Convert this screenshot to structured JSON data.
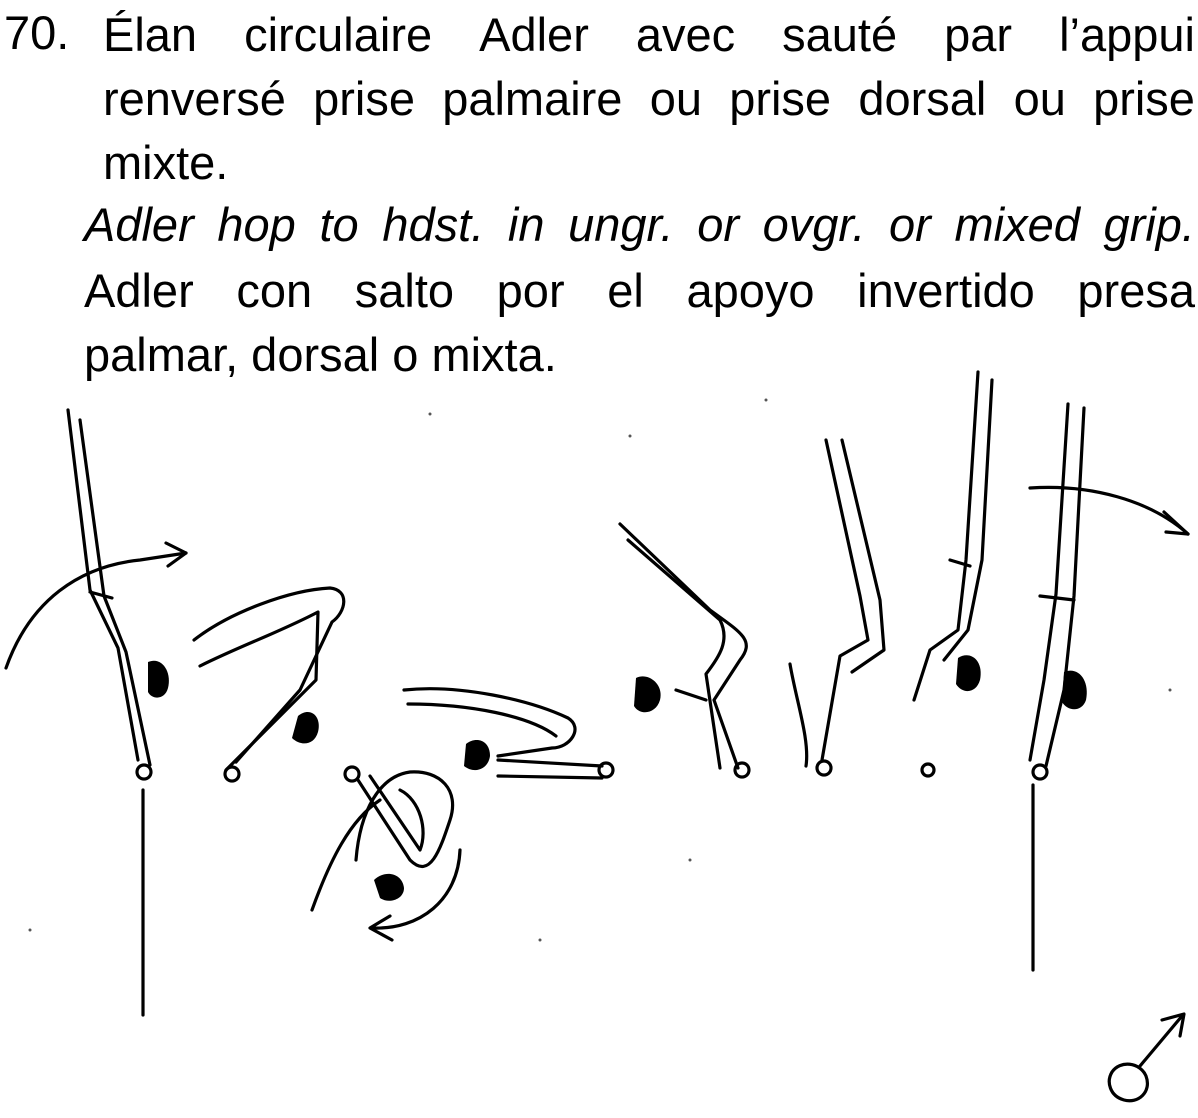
{
  "element": {
    "number": "70.",
    "title_fr": {
      "line1_words": [
        "Élan",
        "circulaire",
        "Adler",
        "avec",
        "sauté",
        "par",
        "l’appui"
      ],
      "line2_words": [
        "renversé",
        "prise",
        "palmaire",
        "ou",
        "prise",
        "dorsal",
        "ou",
        "prise"
      ],
      "line3": "mixte."
    },
    "title_en": {
      "line_words": [
        "Adler",
        "hop",
        "to",
        "hdst.",
        "in",
        "ungr.",
        "or",
        "ovgr.",
        "or",
        "mixed",
        "grip."
      ]
    },
    "title_es": {
      "line1_words": [
        "Adler",
        "con",
        "salto",
        "por",
        "el",
        "apoyo",
        "invertido",
        "presa"
      ],
      "line2": "palmar, dorsal o mixta."
    }
  },
  "illustration": {
    "figure_count": 8,
    "gender_symbol": "male-symbol-icon",
    "ink_color": "#000000"
  }
}
